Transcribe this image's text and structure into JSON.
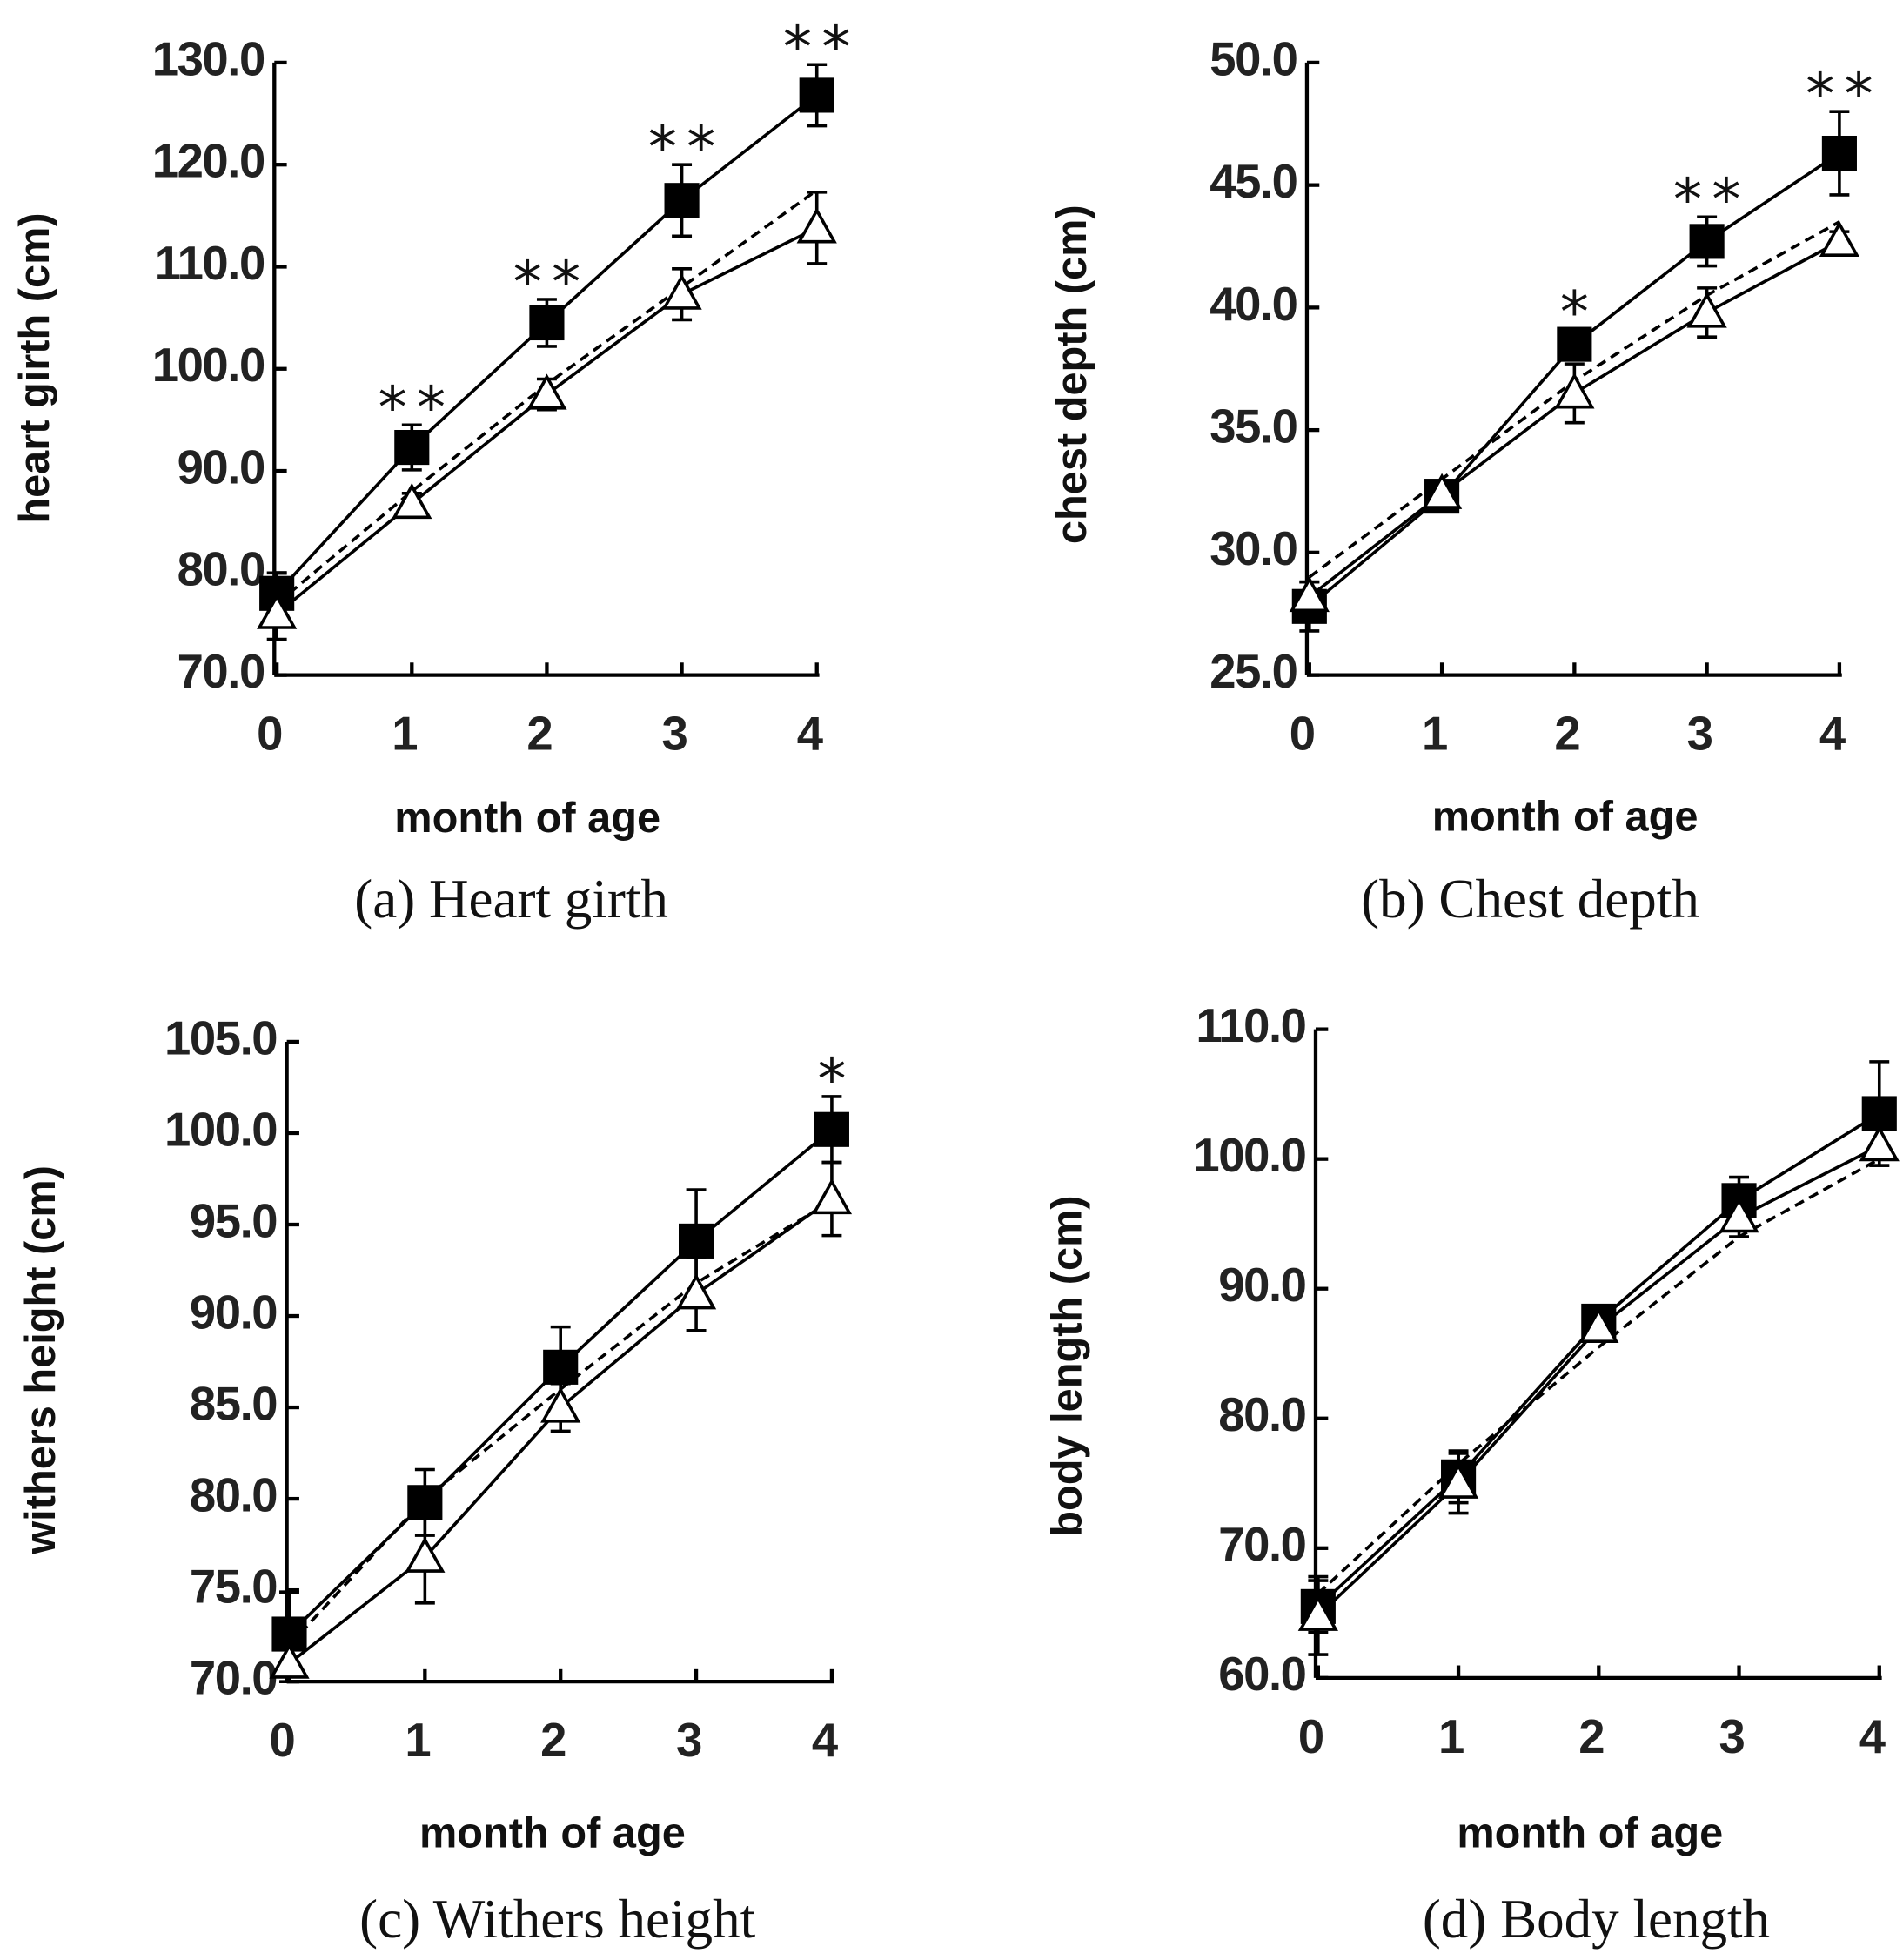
{
  "chart_data": [
    {
      "type": "line",
      "title": "(a) Heart girth",
      "xlabel": "month of age",
      "ylabel": "heart girth (cm)",
      "x": [
        0,
        1,
        2,
        3,
        4
      ],
      "xlim": [
        0,
        4
      ],
      "xticks": [
        0,
        1,
        2,
        3,
        4
      ],
      "ylim": [
        70,
        130
      ],
      "yticks": [
        {
          "value": 70,
          "label": "70.0"
        },
        {
          "value": 80,
          "label": "80.0"
        },
        {
          "value": 90,
          "label": "90.0"
        },
        {
          "value": 100,
          "label": "100.0"
        },
        {
          "value": 110,
          "label": "110.0"
        },
        {
          "value": 120,
          "label": "120.0"
        },
        {
          "value": 130,
          "label": "130.0"
        }
      ],
      "series": [
        {
          "color": "#000000",
          "marker": "square",
          "line": "solid",
          "values": [
            78,
            92.3,
            104.5,
            116.5,
            126.8
          ],
          "errors": [
            2,
            2.2,
            2.3,
            3.5,
            3
          ]
        },
        {
          "color": "#000000",
          "marker": "triangle",
          "line": "solid",
          "values": [
            76,
            86.8,
            97.5,
            107.3,
            113.8
          ],
          "errors": [
            2.5,
            1,
            1.5,
            2.5,
            3.5
          ]
        },
        {
          "color": "#000000",
          "marker": "none",
          "line": "dashed",
          "values": [
            77,
            88,
            98.5,
            108,
            117.5
          ]
        }
      ],
      "annotations": [
        {
          "x": 1,
          "text": "**"
        },
        {
          "x": 2,
          "text": "**"
        },
        {
          "x": 3,
          "text": "**"
        },
        {
          "x": 4,
          "text": "**"
        }
      ]
    },
    {
      "type": "line",
      "title": "(b) Chest depth",
      "xlabel": "month of age",
      "ylabel": "chest depth (cm)",
      "x": [
        0,
        1,
        2,
        3,
        4
      ],
      "xlim": [
        0,
        4
      ],
      "xticks": [
        0,
        1,
        2,
        3,
        4
      ],
      "ylim": [
        25,
        50
      ],
      "yticks": [
        {
          "value": 25,
          "label": "25.0"
        },
        {
          "value": 30,
          "label": "30.0"
        },
        {
          "value": 35,
          "label": "35.0"
        },
        {
          "value": 40,
          "label": "40.0"
        },
        {
          "value": 45,
          "label": "45.0"
        },
        {
          "value": 50,
          "label": "50.0"
        }
      ],
      "series": [
        {
          "color": "#000000",
          "marker": "square",
          "line": "solid",
          "values": [
            27.8,
            32.3,
            38.5,
            42.7,
            46.3
          ],
          "errors": [
            1,
            0.3,
            0.6,
            1,
            1.7
          ]
        },
        {
          "color": "#000000",
          "marker": "triangle",
          "line": "solid",
          "values": [
            28.2,
            32.4,
            36.5,
            39.8,
            42.7
          ],
          "errors": [
            0.6,
            0.3,
            1.2,
            1,
            0.4
          ]
        },
        {
          "color": "#000000",
          "marker": "none",
          "line": "dashed",
          "values": [
            29,
            33,
            37,
            40.5,
            43.5
          ]
        }
      ],
      "annotations": [
        {
          "x": 2,
          "text": "*"
        },
        {
          "x": 3,
          "text": "**"
        },
        {
          "x": 4,
          "text": "**"
        }
      ]
    },
    {
      "type": "line",
      "title": "(c) Withers height",
      "xlabel": "month of age",
      "ylabel": "withers height (cm)",
      "x": [
        0,
        1,
        2,
        3,
        4
      ],
      "xlim": [
        0,
        4
      ],
      "xticks": [
        0,
        1,
        2,
        3,
        4
      ],
      "ylim": [
        70,
        105
      ],
      "yticks": [
        {
          "value": 70,
          "label": "70.0"
        },
        {
          "value": 75,
          "label": "75.0"
        },
        {
          "value": 80,
          "label": "80.0"
        },
        {
          "value": 85,
          "label": "85.0"
        },
        {
          "value": 90,
          "label": "90.0"
        },
        {
          "value": 95,
          "label": "95.0"
        },
        {
          "value": 100,
          "label": "100.0"
        },
        {
          "value": 105,
          "label": "105.0"
        }
      ],
      "series": [
        {
          "color": "#000000",
          "marker": "square",
          "line": "solid",
          "values": [
            72.6,
            79.8,
            87.2,
            94.1,
            100.2
          ],
          "errors": [
            2.3,
            1.8,
            2.2,
            2.8,
            1.8
          ]
        },
        {
          "color": "#000000",
          "marker": "triangle",
          "line": "solid",
          "values": [
            71,
            76.8,
            85,
            91.2,
            96.4
          ],
          "errors": [
            1,
            2.5,
            1.3,
            2,
            2
          ]
        },
        {
          "color": "#000000",
          "marker": "none",
          "line": "dashed",
          "values": [
            72,
            80,
            86,
            91.8,
            96.3
          ]
        }
      ],
      "annotations": [
        {
          "x": 4,
          "text": "*"
        }
      ]
    },
    {
      "type": "line",
      "title": "(d) Body length",
      "xlabel": "month of age",
      "ylabel": "body length (cm)",
      "x": [
        0,
        1,
        2,
        3,
        4
      ],
      "xlim": [
        0,
        4
      ],
      "xticks": [
        0,
        1,
        2,
        3,
        4
      ],
      "ylim": [
        60,
        110
      ],
      "yticks": [
        {
          "value": 60,
          "label": "60.0"
        },
        {
          "value": 70,
          "label": "70.0"
        },
        {
          "value": 80,
          "label": "80.0"
        },
        {
          "value": 90,
          "label": "90.0"
        },
        {
          "value": 100,
          "label": "100.0"
        },
        {
          "value": 110,
          "label": "110.0"
        }
      ],
      "series": [
        {
          "color": "#000000",
          "marker": "square",
          "line": "solid",
          "values": [
            65.5,
            75.5,
            87.5,
            96.8,
            103.5
          ],
          "errors": [
            2,
            2,
            0.5,
            1.8,
            4
          ]
        },
        {
          "color": "#000000",
          "marker": "triangle",
          "line": "solid",
          "values": [
            64.8,
            75,
            87,
            95.5,
            101
          ],
          "errors": [
            3,
            2.3,
            0.5,
            1.5,
            1.5
          ]
        },
        {
          "color": "#000000",
          "marker": "none",
          "line": "dashed",
          "values": [
            66.5,
            76.5,
            85.5,
            94,
            100
          ]
        }
      ]
    }
  ]
}
